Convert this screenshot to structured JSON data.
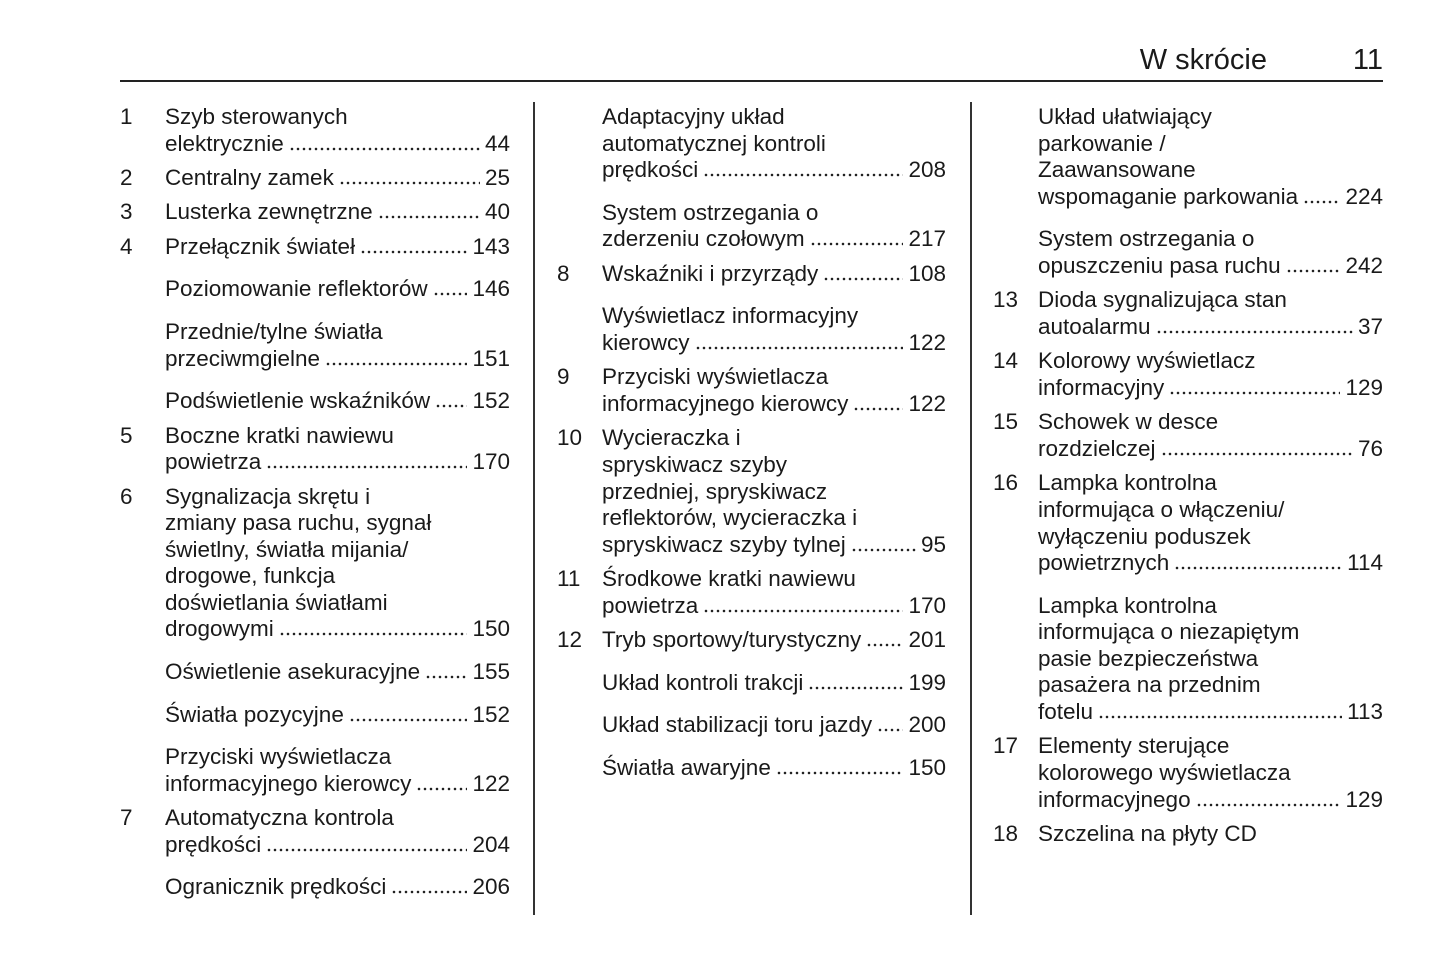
{
  "header": {
    "title": "W skrócie",
    "page_number": "11"
  },
  "columns": [
    [
      {
        "num": "1",
        "lines": [
          "Szyb sterowanych",
          "elektrycznie"
        ],
        "page": "44"
      },
      {
        "num": "2",
        "lines": [
          "Centralny zamek"
        ],
        "page": "25"
      },
      {
        "num": "3",
        "lines": [
          "Lusterka zewnętrzne"
        ],
        "page": "40"
      },
      {
        "num": "4",
        "lines": [
          "Przełącznik świateł"
        ],
        "page": "143"
      },
      {
        "num": "",
        "lines": [
          "Poziomowanie reflektorów"
        ],
        "page": "146"
      },
      {
        "num": "",
        "lines": [
          "Przednie/tylne światła",
          "przeciwmgielne"
        ],
        "page": "151"
      },
      {
        "num": "",
        "lines": [
          "Podświetlenie wskaźników"
        ],
        "page": "152"
      },
      {
        "num": "5",
        "lines": [
          "Boczne kratki nawiewu",
          "powietrza"
        ],
        "page": "170"
      },
      {
        "num": "6",
        "lines": [
          "Sygnalizacja skrętu i",
          "zmiany pasa ruchu, sygnał",
          "świetlny, światła mijania/",
          "drogowe, funkcja",
          "doświetlania światłami",
          "drogowymi"
        ],
        "page": "150"
      },
      {
        "num": "",
        "lines": [
          "Oświetlenie asekuracyjne"
        ],
        "page": "155"
      },
      {
        "num": "",
        "lines": [
          "Światła pozycyjne"
        ],
        "page": "152"
      },
      {
        "num": "",
        "lines": [
          "Przyciski wyświetlacza",
          "informacyjnego kierowcy"
        ],
        "page": "122"
      },
      {
        "num": "7",
        "lines": [
          "Automatyczna kontrola",
          "prędkości"
        ],
        "page": "204"
      },
      {
        "num": "",
        "lines": [
          "Ogranicznik prędkości"
        ],
        "page": "206"
      }
    ],
    [
      {
        "num": "",
        "lines": [
          "Adaptacyjny układ",
          "automatycznej kontroli",
          "prędkości"
        ],
        "page": "208"
      },
      {
        "num": "",
        "lines": [
          "System ostrzegania o",
          "zderzeniu czołowym"
        ],
        "page": "217"
      },
      {
        "num": "8",
        "lines": [
          "Wskaźniki i przyrządy"
        ],
        "page": "108"
      },
      {
        "num": "",
        "lines": [
          "Wyświetlacz informacyjny",
          "kierowcy"
        ],
        "page": "122"
      },
      {
        "num": "9",
        "lines": [
          "Przyciski wyświetlacza",
          "informacyjnego kierowcy"
        ],
        "page": "122"
      },
      {
        "num": "10",
        "lines": [
          "Wycieraczka i",
          "spryskiwacz szyby",
          "przedniej, spryskiwacz",
          "reflektorów, wycieraczka i",
          "spryskiwacz szyby tylnej"
        ],
        "page": "95"
      },
      {
        "num": "11",
        "lines": [
          "Środkowe kratki nawiewu",
          "powietrza"
        ],
        "page": "170"
      },
      {
        "num": "12",
        "lines": [
          "Tryb sportowy/turystyczny"
        ],
        "page": "201"
      },
      {
        "num": "",
        "lines": [
          "Układ kontroli trakcji"
        ],
        "page": "199"
      },
      {
        "num": "",
        "lines": [
          "Układ stabilizacji toru jazdy"
        ],
        "page": "200"
      },
      {
        "num": "",
        "lines": [
          "Światła awaryjne"
        ],
        "page": "150"
      }
    ],
    [
      {
        "num": "",
        "lines": [
          "Układ ułatwiający",
          "parkowanie /",
          "Zaawansowane",
          "wspomaganie parkowania"
        ],
        "page": "224"
      },
      {
        "num": "",
        "lines": [
          "System ostrzegania o",
          "opuszczeniu pasa ruchu"
        ],
        "page": "242"
      },
      {
        "num": "13",
        "lines": [
          "Dioda sygnalizująca stan",
          "autoalarmu"
        ],
        "page": "37"
      },
      {
        "num": "14",
        "lines": [
          "Kolorowy wyświetlacz",
          "informacyjny"
        ],
        "page": "129"
      },
      {
        "num": "15",
        "lines": [
          "Schowek w desce",
          "rozdzielczej"
        ],
        "page": "76"
      },
      {
        "num": "16",
        "lines": [
          "Lampka kontrolna",
          "informująca o włączeniu/",
          "wyłączeniu poduszek",
          "powietrznych"
        ],
        "page": "114"
      },
      {
        "num": "",
        "lines": [
          "Lampka kontrolna",
          "informująca o niezapiętym",
          "pasie bezpieczeństwa",
          "pasażera na przednim",
          "fotelu"
        ],
        "page": "113"
      },
      {
        "num": "17",
        "lines": [
          "Elementy sterujące",
          "kolorowego wyświetlacza",
          "informacyjnego"
        ],
        "page": "129"
      },
      {
        "num": "18",
        "lines": [
          "Szczelina na płyty CD"
        ],
        "page": ""
      }
    ]
  ]
}
